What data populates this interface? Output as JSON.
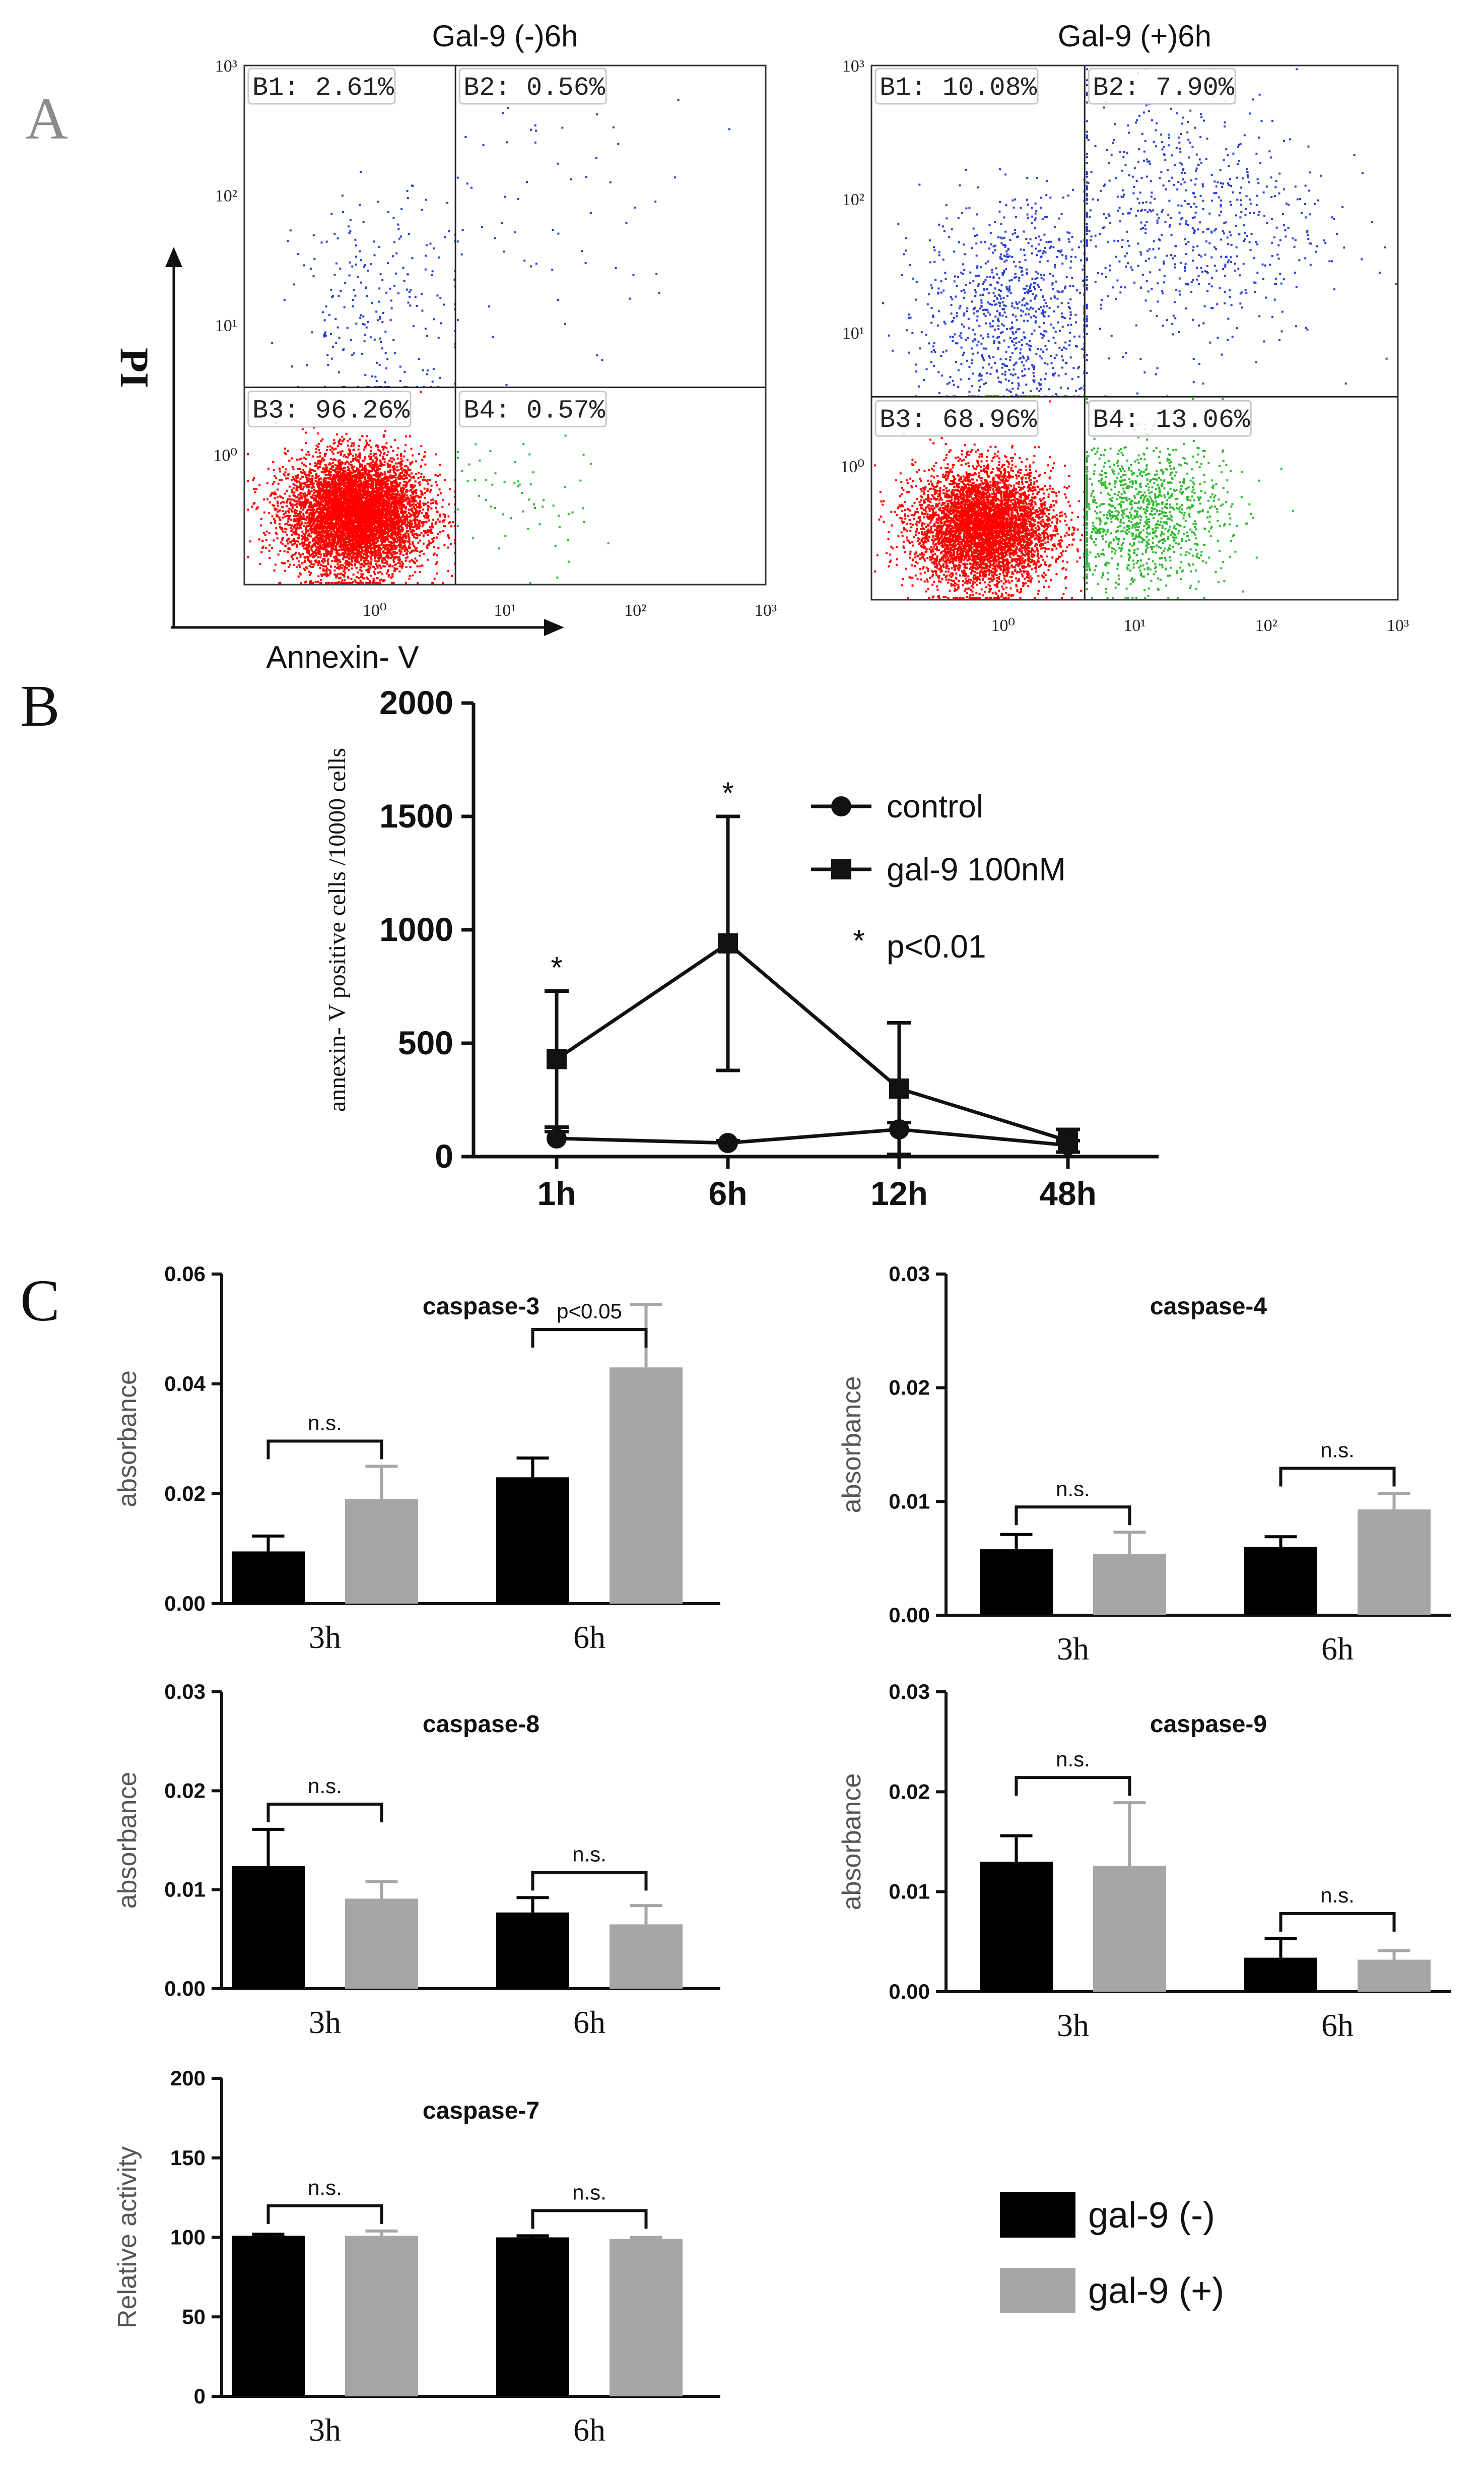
{
  "panel_letters": {
    "a": "A",
    "b": "B",
    "c": "C"
  },
  "colors": {
    "black": "#000000",
    "grey": "#a6a6a6",
    "live": "#ff0000",
    "apoptotic": "#2db82d",
    "necrotic": "#2a3fd0"
  },
  "chart_data": [
    {
      "id": "flow_neg",
      "type": "scatter",
      "title": "Gal-9 (-)6h",
      "xlabel": "Annexin- V",
      "ylabel": "PI",
      "x_ticks": [
        "10⁰",
        "10¹",
        "10²",
        "10³"
      ],
      "y_ticks": [
        "10⁰",
        "10¹",
        "10²",
        "10³"
      ],
      "xlim_log10": [
        -1,
        3
      ],
      "ylim_log10": [
        -1,
        3
      ],
      "gate_log10": {
        "x": 0.62,
        "y": 0.52
      },
      "quadrants": [
        {
          "label": "B1: 2.61%",
          "value": 2.61
        },
        {
          "label": "B2: 0.56%",
          "value": 0.56
        },
        {
          "label": "B3: 96.26%",
          "value": 96.26
        },
        {
          "label": "B4: 0.57%",
          "value": 0.57
        }
      ]
    },
    {
      "id": "flow_pos",
      "type": "scatter",
      "title": "Gal-9 (+)6h",
      "x_ticks": [
        "10⁰",
        "10¹",
        "10²",
        "10³"
      ],
      "y_ticks": [
        "10⁰",
        "10¹",
        "10²",
        "10³"
      ],
      "xlim_log10": [
        -1,
        3
      ],
      "ylim_log10": [
        -1,
        3
      ],
      "gate_log10": {
        "x": 0.62,
        "y": 0.52
      },
      "quadrants": [
        {
          "label": "B1: 10.08%",
          "value": 10.08
        },
        {
          "label": "B2: 7.90%",
          "value": 7.9
        },
        {
          "label": "B3: 68.96%",
          "value": 68.96
        },
        {
          "label": "B4: 13.06%",
          "value": 13.06
        }
      ]
    },
    {
      "id": "timecourse",
      "type": "line",
      "ylabel": "annexin- V positive cells  /10000 cells",
      "categories": [
        "1h",
        "6h",
        "12h",
        "48h"
      ],
      "ylim": [
        0,
        2000
      ],
      "yticks": [
        0,
        500,
        1000,
        1500,
        2000
      ],
      "series": [
        {
          "name": "control",
          "marker": "circle",
          "values": [
            80,
            60,
            120,
            50
          ],
          "err": [
            30,
            10,
            30,
            20
          ]
        },
        {
          "name": "gal-9 100nM",
          "marker": "square",
          "values": [
            430,
            940,
            300,
            70
          ],
          "err": [
            300,
            560,
            290,
            50
          ]
        }
      ],
      "significance": [
        {
          "category": "1h",
          "label": "*"
        },
        {
          "category": "6h",
          "label": "*"
        }
      ],
      "legend": {
        "position": "top-right",
        "note_symbol": "*",
        "note": "p<0.01"
      }
    },
    {
      "id": "caspase3",
      "type": "bar",
      "title": "caspase-3",
      "ylabel": "absorbance",
      "categories": [
        "3h",
        "6h"
      ],
      "ylim": [
        0,
        0.06
      ],
      "ytick_labels": [
        "0.00",
        "0.02",
        "0.04",
        "0.06"
      ],
      "series": [
        {
          "name": "gal-9 (-)",
          "values": [
            0.0095,
            0.023
          ],
          "err": [
            0.0028,
            0.0035
          ]
        },
        {
          "name": "gal-9 (+)",
          "values": [
            0.019,
            0.043
          ],
          "err": [
            0.006,
            0.0115
          ]
        }
      ],
      "significance": [
        "n.s.",
        "p<0.05"
      ]
    },
    {
      "id": "caspase4",
      "type": "bar",
      "title": "caspase-4",
      "ylabel": "absorbance",
      "categories": [
        "3h",
        "6h"
      ],
      "ylim": [
        0,
        0.03
      ],
      "ytick_labels": [
        "0.00",
        "0.01",
        "0.02",
        "0.03"
      ],
      "series": [
        {
          "name": "gal-9 (-)",
          "values": [
            0.0058,
            0.006
          ],
          "err": [
            0.0013,
            0.0009
          ]
        },
        {
          "name": "gal-9 (+)",
          "values": [
            0.0054,
            0.0093
          ],
          "err": [
            0.0019,
            0.0014
          ]
        }
      ],
      "significance": [
        "n.s.",
        "n.s."
      ]
    },
    {
      "id": "caspase8",
      "type": "bar",
      "title": "caspase-8",
      "ylabel": "absorbance",
      "categories": [
        "3h",
        "6h"
      ],
      "ylim": [
        0,
        0.03
      ],
      "ytick_labels": [
        "0.00",
        "0.01",
        "0.02",
        "0.03"
      ],
      "series": [
        {
          "name": "gal-9 (-)",
          "values": [
            0.0124,
            0.0077
          ],
          "err": [
            0.0037,
            0.0015
          ]
        },
        {
          "name": "gal-9 (+)",
          "values": [
            0.0091,
            0.0065
          ],
          "err": [
            0.0017,
            0.0019
          ]
        }
      ],
      "significance": [
        "n.s.",
        "n.s."
      ]
    },
    {
      "id": "caspase9",
      "type": "bar",
      "title": "caspase-9",
      "ylabel": "absorbance",
      "categories": [
        "3h",
        "6h"
      ],
      "ylim": [
        0,
        0.03
      ],
      "ytick_labels": [
        "0.00",
        "0.01",
        "0.02",
        "0.03"
      ],
      "series": [
        {
          "name": "gal-9 (-)",
          "values": [
            0.013,
            0.0034
          ],
          "err": [
            0.0026,
            0.0019
          ]
        },
        {
          "name": "gal-9 (+)",
          "values": [
            0.0126,
            0.0032
          ],
          "err": [
            0.0063,
            0.0009
          ]
        }
      ],
      "significance": [
        "n.s.",
        "n.s."
      ]
    },
    {
      "id": "caspase7",
      "type": "bar",
      "title": "caspase-7",
      "ylabel": "Relative activity",
      "categories": [
        "3h",
        "6h"
      ],
      "ylim": [
        0,
        200
      ],
      "ytick_labels": [
        "0",
        "50",
        "100",
        "150",
        "200"
      ],
      "series": [
        {
          "name": "gal-9 (-)",
          "values": [
            101,
            100
          ],
          "err": [
            1,
            1
          ]
        },
        {
          "name": "gal-9 (+)",
          "values": [
            101,
            99
          ],
          "err": [
            3,
            1
          ]
        }
      ],
      "significance": [
        "n.s.",
        "n.s."
      ]
    }
  ],
  "legend": [
    {
      "label": "gal-9 (-)",
      "color": "#000000"
    },
    {
      "label": "gal-9 (+)",
      "color": "#a6a6a6"
    }
  ]
}
